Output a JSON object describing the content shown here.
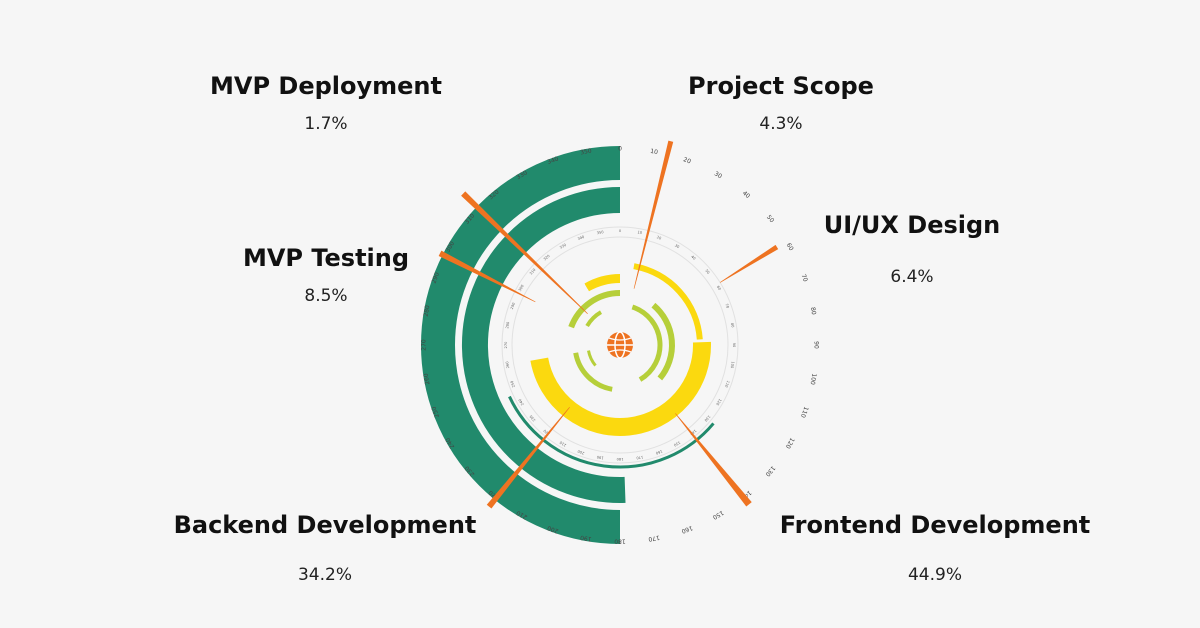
{
  "chart_data": {
    "type": "radial-bar",
    "series": [
      {
        "name": "Project Scope",
        "value": 4.3
      },
      {
        "name": "UI/UX Design",
        "value": 6.4
      },
      {
        "name": "Frontend Development",
        "value": 44.9
      },
      {
        "name": "Backend Development",
        "value": 34.2
      },
      {
        "name": "MVP Testing",
        "value": 8.5
      },
      {
        "name": "MVP Deployment",
        "value": 1.7
      }
    ],
    "labels": [
      {
        "title": "MVP Deployment",
        "value": "1.7%"
      },
      {
        "title": "Project Scope",
        "value": "4.3%"
      },
      {
        "title": "UI/UX Design",
        "value": "6.4%"
      },
      {
        "title": "MVP Testing",
        "value": "8.5%"
      },
      {
        "title": "Backend Development",
        "value": "34.2%"
      },
      {
        "title": "Frontend Development",
        "value": "44.9%"
      }
    ],
    "outer_ticks": [
      0,
      10,
      20,
      30,
      40,
      50,
      60,
      70,
      80,
      90,
      100,
      110,
      120,
      130,
      140,
      150,
      160,
      170,
      180,
      190,
      200,
      210,
      220,
      230,
      240,
      250,
      260,
      270,
      280,
      290,
      300,
      310,
      320,
      330,
      340,
      350
    ],
    "colors": {
      "green": "#218a6c",
      "yellow": "#fbd90f",
      "lime": "#b6cf3a",
      "orange": "#ee7321",
      "background": "#f6f6f6"
    },
    "center_icon": "globe-icon"
  }
}
